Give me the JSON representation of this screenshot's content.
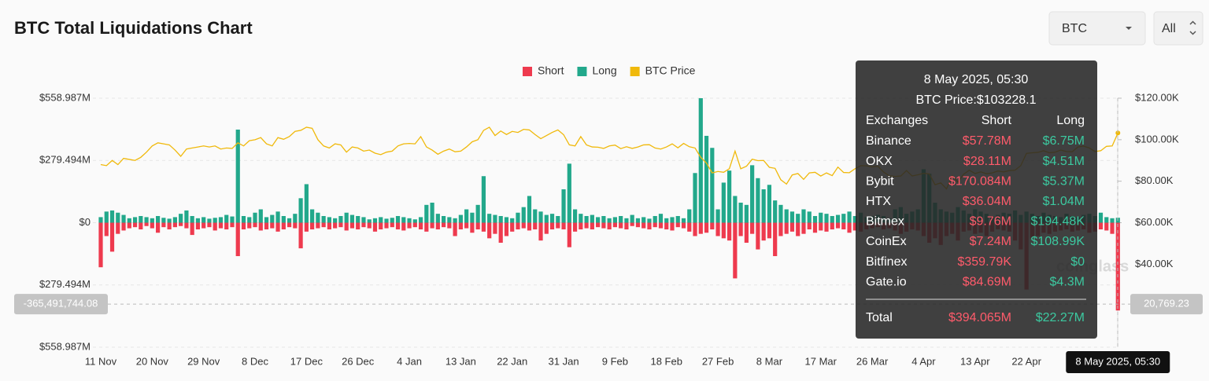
{
  "header": {
    "title": "BTC Total Liquidations Chart",
    "coin_select": "BTC",
    "range_select": "All"
  },
  "chart_data": {
    "type": "bar",
    "stacked": false,
    "categories": [
      "11 Nov",
      null,
      null,
      null,
      null,
      null,
      null,
      null,
      null,
      "20 Nov",
      null,
      null,
      null,
      null,
      null,
      null,
      null,
      null,
      "29 Nov",
      null,
      null,
      null,
      null,
      null,
      null,
      null,
      null,
      "8 Dec",
      null,
      null,
      null,
      null,
      null,
      null,
      null,
      null,
      "17 Dec",
      null,
      null,
      null,
      null,
      null,
      null,
      null,
      null,
      "26 Dec",
      null,
      null,
      null,
      null,
      null,
      null,
      null,
      null,
      "4 Jan",
      null,
      null,
      null,
      null,
      null,
      null,
      null,
      null,
      "13 Jan",
      null,
      null,
      null,
      null,
      null,
      null,
      null,
      null,
      "22 Jan",
      null,
      null,
      null,
      null,
      null,
      null,
      null,
      null,
      "31 Jan",
      null,
      null,
      null,
      null,
      null,
      null,
      null,
      null,
      "9 Feb",
      null,
      null,
      null,
      null,
      null,
      null,
      null,
      null,
      "18 Feb",
      null,
      null,
      null,
      null,
      null,
      null,
      null,
      null,
      "27 Feb",
      null,
      null,
      null,
      null,
      null,
      null,
      null,
      null,
      "8 Mar",
      null,
      null,
      null,
      null,
      null,
      null,
      null,
      null,
      "17 Mar",
      null,
      null,
      null,
      null,
      null,
      null,
      null,
      null,
      "26 Mar",
      null,
      null,
      null,
      null,
      null,
      null,
      null,
      null,
      "4 Apr",
      null,
      null,
      null,
      null,
      null,
      null,
      null,
      null,
      "13 Apr",
      null,
      null,
      null,
      null,
      null,
      null,
      null,
      null,
      "22 Apr",
      null,
      null,
      null,
      null,
      null,
      null,
      null,
      null,
      null,
      null,
      null,
      null,
      null,
      null,
      null,
      "8 May 2025, 05:30"
    ],
    "series": [
      {
        "name": "Short",
        "color": "#ee3a4e",
        "type": "bar",
        "values": [
          -200,
          -60,
          -130,
          -50,
          -35,
          -25,
          -20,
          -30,
          -15,
          -25,
          -45,
          -20,
          -30,
          -20,
          -15,
          -25,
          -55,
          -30,
          -25,
          -20,
          -35,
          -25,
          -30,
          -20,
          -150,
          -30,
          -25,
          -20,
          -35,
          -30,
          -25,
          -40,
          -30,
          -20,
          -25,
          -115,
          -40,
          -30,
          -25,
          -20,
          -30,
          -25,
          -20,
          -35,
          -25,
          -30,
          -20,
          -25,
          -40,
          -30,
          -25,
          -20,
          -30,
          -35,
          -25,
          -20,
          -30,
          -40,
          -25,
          -30,
          -20,
          -25,
          -60,
          -30,
          -25,
          -45,
          -30,
          -40,
          -70,
          -50,
          -90,
          -60,
          -40,
          -30,
          -25,
          -35,
          -30,
          -80,
          -50,
          -30,
          -25,
          -30,
          -110,
          -40,
          -30,
          -25,
          -30,
          -20,
          -25,
          -30,
          -20,
          -25,
          -30,
          -15,
          -20,
          -25,
          -30,
          -20,
          -25,
          -30,
          -35,
          -20,
          -25,
          -40,
          -60,
          -50,
          -45,
          -30,
          -60,
          -70,
          -80,
          -250,
          -60,
          -90,
          -50,
          -120,
          -80,
          -70,
          -150,
          -60,
          -50,
          -40,
          -60,
          -50,
          -30,
          -45,
          -35,
          -40,
          -30,
          -25,
          -30,
          -45,
          -35,
          -40,
          -30,
          -25,
          -20,
          -30,
          -25,
          -35,
          -50,
          -40,
          -30,
          -35,
          -60,
          -90,
          -70,
          -100,
          -60,
          -50,
          -80,
          -40,
          -35,
          -50,
          -45,
          -60,
          -40,
          -30,
          -35,
          -40,
          -80,
          -120,
          -300,
          -70,
          -60,
          -45,
          -50,
          -40,
          -35,
          -30,
          -40,
          -35,
          -30,
          -45,
          -40,
          -30,
          -35,
          -50,
          -394.065
        ]
      },
      {
        "name": "Long",
        "color": "#22a88b",
        "type": "bar",
        "values": [
          25,
          50,
          55,
          45,
          35,
          20,
          25,
          30,
          25,
          20,
          30,
          22,
          18,
          25,
          40,
          55,
          30,
          20,
          25,
          18,
          22,
          25,
          35,
          28,
          418,
          30,
          25,
          45,
          60,
          25,
          35,
          50,
          30,
          20,
          40,
          110,
          173,
          60,
          45,
          30,
          25,
          20,
          30,
          45,
          35,
          30,
          25,
          15,
          20,
          25,
          18,
          22,
          30,
          25,
          20,
          15,
          25,
          80,
          90,
          40,
          30,
          25,
          20,
          35,
          60,
          45,
          80,
          209,
          40,
          35,
          30,
          25,
          20,
          45,
          70,
          120,
          60,
          50,
          35,
          40,
          30,
          150,
          265,
          60,
          40,
          30,
          35,
          25,
          30,
          20,
          25,
          30,
          20,
          35,
          20,
          25,
          18,
          30,
          40,
          20,
          25,
          30,
          20,
          60,
          223,
          559,
          390,
          336,
          60,
          180,
          234,
          120,
          90,
          80,
          258,
          200,
          150,
          170,
          100,
          80,
          60,
          50,
          40,
          60,
          50,
          30,
          45,
          40,
          30,
          35,
          40,
          50,
          30,
          45,
          25,
          30,
          35,
          30,
          20,
          60,
          70,
          40,
          50,
          60,
          240,
          220,
          90,
          60,
          50,
          45,
          70,
          55,
          40,
          60,
          50,
          40,
          30,
          35,
          45,
          40,
          55,
          35,
          50,
          40,
          30,
          45,
          35,
          30,
          25,
          40,
          30,
          25,
          35,
          40,
          30,
          45,
          25,
          20,
          22.27
        ]
      },
      {
        "name": "BTC Price",
        "color": "#f0b90b",
        "type": "line",
        "axis": "y2",
        "values": [
          88000,
          87500,
          90000,
          88000,
          91000,
          90500,
          90000,
          91500,
          94000,
          97000,
          98500,
          98000,
          97500,
          95000,
          92000,
          95500,
          96000,
          96500,
          97000,
          96500,
          97000,
          95500,
          96000,
          95800,
          98500,
          97000,
          99500,
          100000,
          101000,
          98000,
          97000,
          101000,
          100200,
          101500,
          104000,
          104500,
          106000,
          105500,
          100000,
          97000,
          96000,
          98000,
          97500,
          94000,
          96500,
          96000,
          94500,
          95000,
          93500,
          92800,
          94000,
          94500,
          97000,
          98000,
          98200,
          98000,
          101500,
          96500,
          95000,
          93000,
          94500,
          95500,
          94200,
          94500,
          96500,
          99000,
          100000,
          104500,
          106000,
          102000,
          104200,
          102500,
          104000,
          103500,
          105000,
          104700,
          102500,
          100500,
          102000,
          103500,
          104700,
          102400,
          97500,
          97000,
          101500,
          97500,
          96500,
          96400,
          95800,
          97000,
          97400,
          95700,
          96600,
          95800,
          96500,
          97500,
          97600,
          96000,
          95500,
          96500,
          98000,
          96100,
          98200,
          96600,
          96000,
          91500,
          88700,
          84000,
          84700,
          84300,
          86000,
          94500,
          86000,
          87200,
          90600,
          89900,
          90000,
          86700,
          86200,
          80700,
          78600,
          83000,
          83700,
          80900,
          84000,
          84300,
          82500,
          84000,
          82700,
          86800,
          84200,
          84100,
          86000,
          87500,
          87400,
          86900,
          87200,
          84400,
          82600,
          82300,
          82500,
          85100,
          82500,
          83100,
          83800,
          83500,
          78300,
          79200,
          76300,
          82600,
          79600,
          83400,
          85300,
          83700,
          84500,
          83600,
          84000,
          84900,
          84500,
          85100,
          85300,
          87500,
          93400,
          93700,
          93900,
          94700,
          93700,
          94000,
          95000,
          94300,
          94200,
          96500,
          96900,
          96000,
          94300,
          94700,
          96800,
          97000,
          103228.1
        ]
      }
    ],
    "ylim": [
      -558.987,
      558.987
    ],
    "yticks": [
      {
        "value": 558.987,
        "label": "$558.987M"
      },
      {
        "value": 279.494,
        "label": "$279.494M"
      },
      {
        "value": 0,
        "label": "$0"
      },
      {
        "value": -279.494,
        "label": "$279.494M"
      },
      {
        "value": -558.987,
        "label": "$558.987M"
      }
    ],
    "y2lim": [
      0,
      120000
    ],
    "y2ticks": [
      {
        "value": 120000,
        "label": "$120.00K"
      },
      {
        "value": 100000,
        "label": "$100.00K"
      },
      {
        "value": 80000,
        "label": "$80.00K"
      },
      {
        "value": 60000,
        "label": "$60.00K"
      },
      {
        "value": 40000,
        "label": "$40.00K"
      }
    ],
    "grid": true,
    "legend": "top",
    "crosshair": {
      "value": -365.49174408,
      "label": "-365,491,744.08",
      "y2_label": "20,769.23"
    },
    "watermark": "coinglass",
    "tooltip": {
      "title": "8 May 2025, 05:30",
      "price": "BTC Price:$103228.1",
      "headers": [
        "Exchanges",
        "Short",
        "Long"
      ],
      "rows": [
        [
          "Binance",
          "$57.78M",
          "$6.75M"
        ],
        [
          "OKX",
          "$28.11M",
          "$4.51M"
        ],
        [
          "Bybit",
          "$170.084M",
          "$5.37M"
        ],
        [
          "HTX",
          "$36.04M",
          "$1.04M"
        ],
        [
          "Bitmex",
          "$9.76M",
          "$194.48K"
        ],
        [
          "CoinEx",
          "$7.24M",
          "$108.99K"
        ],
        [
          "Bitfinex",
          "$359.79K",
          "$0"
        ],
        [
          "Gate.io",
          "$84.69M",
          "$4.3M"
        ]
      ],
      "total": [
        "Total",
        "$394.065M",
        "$22.27M"
      ]
    }
  }
}
